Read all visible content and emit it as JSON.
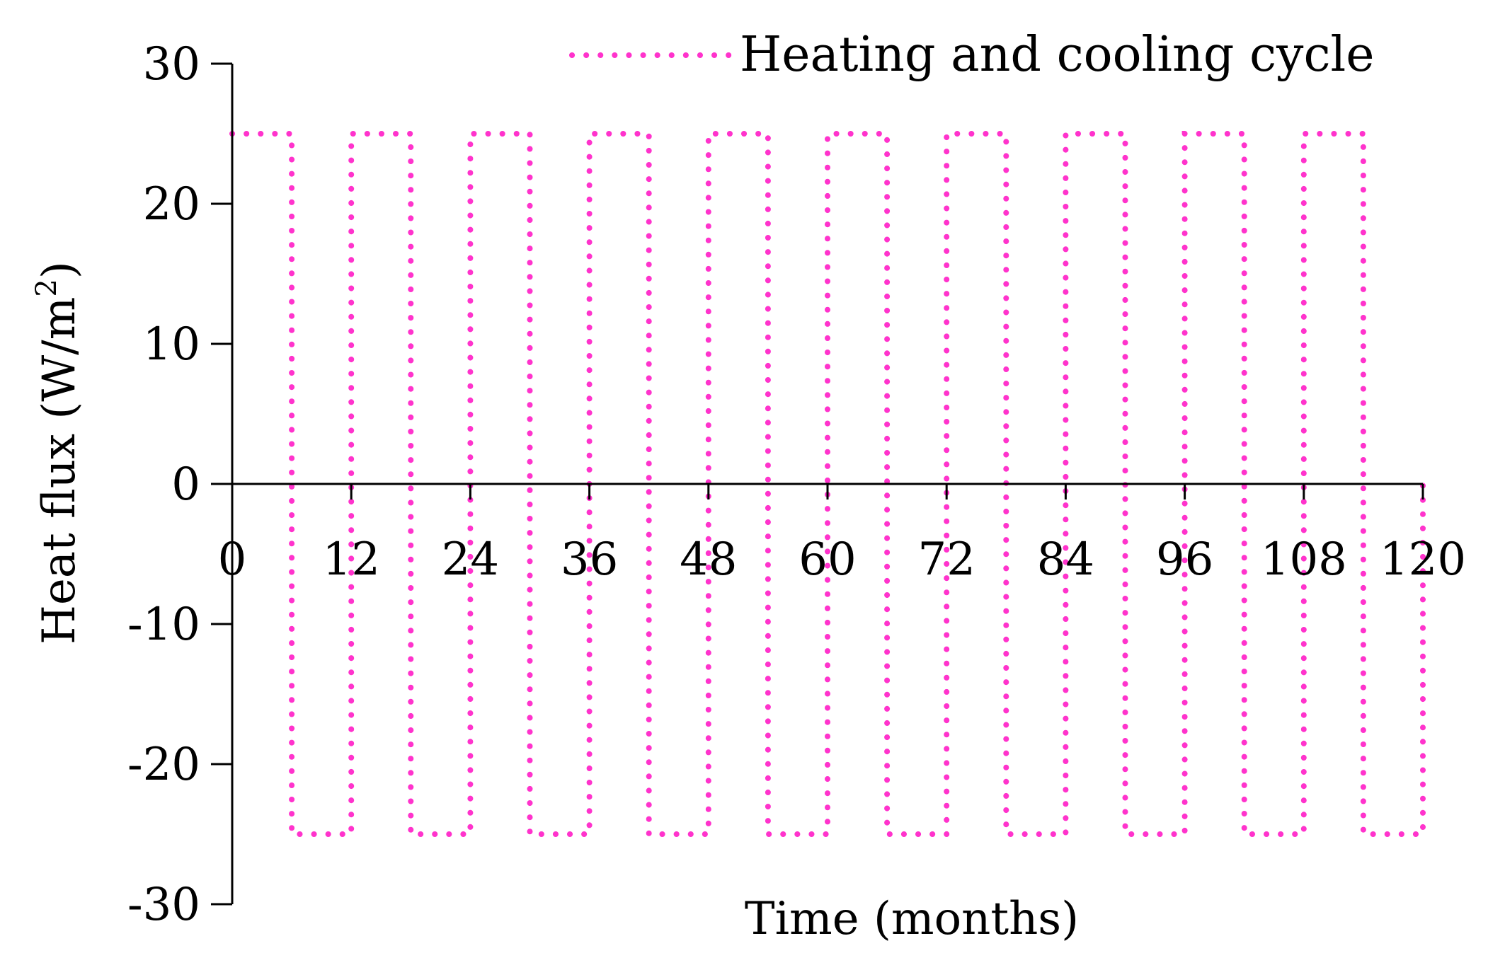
{
  "chart_data": {
    "type": "line",
    "title": "",
    "xlabel": "Time (months)",
    "ylabel_main": "Heat flux (W/m",
    "ylabel_sup": "2",
    "ylabel_close": ")",
    "xlim": [
      0,
      120
    ],
    "ylim": [
      -30,
      30
    ],
    "xticks": [
      0,
      12,
      24,
      36,
      48,
      60,
      72,
      84,
      96,
      108,
      120
    ],
    "yticks": [
      30,
      20,
      10,
      0,
      -10,
      -20,
      -30
    ],
    "grid": false,
    "legend_position": "top-right",
    "series": [
      {
        "name": "Heating and cooling cycle",
        "color": "#ff33cc",
        "line_style": "dotted",
        "x": [
          0,
          6,
          6,
          12,
          12,
          18,
          18,
          24,
          24,
          30,
          30,
          36,
          36,
          42,
          42,
          48,
          48,
          54,
          54,
          60,
          60,
          66,
          66,
          72,
          72,
          78,
          78,
          84,
          84,
          90,
          90,
          96,
          96,
          102,
          102,
          108,
          108,
          114,
          114,
          120,
          120
        ],
        "y": [
          25,
          25,
          -25,
          -25,
          25,
          25,
          -25,
          -25,
          25,
          25,
          -25,
          -25,
          25,
          25,
          -25,
          -25,
          25,
          25,
          -25,
          -25,
          25,
          25,
          -25,
          -25,
          25,
          25,
          -25,
          -25,
          25,
          25,
          -25,
          -25,
          25,
          25,
          -25,
          -25,
          25,
          25,
          -25,
          -25,
          0
        ]
      }
    ]
  }
}
